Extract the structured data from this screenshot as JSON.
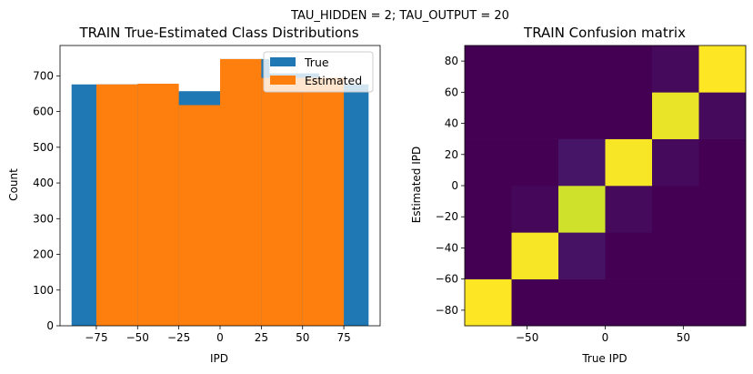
{
  "suptitle": "TAU_HIDDEN = 2; TAU_OUTPUT = 20",
  "colors": {
    "true_series": "#1f77b4",
    "estimated_series": "#ff7f0e"
  },
  "chart_data": [
    {
      "type": "bar",
      "title": "TRAIN True-Estimated Class Distributions",
      "xlabel": "IPD",
      "ylabel": "Count",
      "xlim": [
        -97,
        97
      ],
      "ylim": [
        0,
        785
      ],
      "xticks": [
        "−75",
        "−50",
        "−25",
        "0",
        "25",
        "50",
        "75"
      ],
      "xtick_values": [
        -75,
        -50,
        -25,
        0,
        25,
        50,
        75
      ],
      "yticks": [
        "0",
        "100",
        "200",
        "300",
        "400",
        "500",
        "600",
        "700"
      ],
      "ytick_values": [
        0,
        100,
        200,
        300,
        400,
        500,
        600,
        700
      ],
      "legend_position": "upper right",
      "series": [
        {
          "name": "True",
          "color": "#1f77b4",
          "bin_edges": [
            -90,
            -60,
            -30,
            0,
            30,
            60,
            90
          ],
          "values": [
            676,
            676,
            657,
            747,
            707,
            676
          ]
        },
        {
          "name": "Estimated",
          "color": "#ff7f0e",
          "bin_edges": [
            -75,
            -50,
            -25,
            0,
            25,
            50,
            75
          ],
          "values": [
            676,
            678,
            618,
            747,
            694,
            695
          ]
        }
      ]
    },
    {
      "type": "heatmap",
      "title": "TRAIN Confusion matrix",
      "xlabel": "True IPD",
      "ylabel": "Estimated IPD",
      "xlim": [
        -90,
        90
      ],
      "ylim": [
        -90,
        90
      ],
      "xticks": [
        "−50",
        "0",
        "50"
      ],
      "xtick_values": [
        -50,
        0,
        50
      ],
      "yticks": [
        "−80",
        "−60",
        "−40",
        "−20",
        "0",
        "20",
        "40",
        "60",
        "80"
      ],
      "ytick_values": [
        -80,
        -60,
        -40,
        -20,
        0,
        20,
        40,
        60,
        80
      ],
      "x_edges": [
        -90,
        -60,
        -30,
        0,
        30,
        60,
        90
      ],
      "y_edges": [
        -90,
        -60,
        -30,
        0,
        30,
        60,
        90
      ],
      "colormap": "viridis",
      "matrix_rows_bottom_to_top": [
        [
          0.97,
          0.0,
          0.0,
          0.0,
          0.0,
          0.0
        ],
        [
          0.0,
          0.96,
          0.06,
          0.0,
          0.0,
          0.0
        ],
        [
          0.0,
          0.02,
          0.9,
          0.03,
          0.0,
          0.0
        ],
        [
          0.0,
          0.0,
          0.07,
          0.96,
          0.03,
          0.0
        ],
        [
          0.0,
          0.0,
          0.0,
          0.0,
          0.94,
          0.03
        ],
        [
          0.0,
          0.0,
          0.0,
          0.0,
          0.03,
          0.97
        ]
      ]
    }
  ]
}
